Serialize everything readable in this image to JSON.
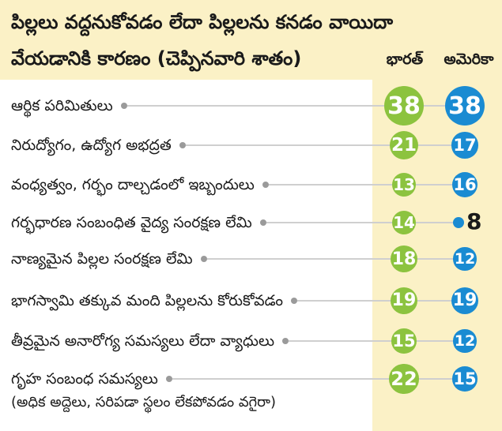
{
  "chart_data": {
    "type": "table",
    "title_line1": "పిల్లలు వద్దనుకోవడం లేదా పిల్లలను కనడం వాయిదా",
    "title_line2": "వేయడానికి కారణం (చెప్పినవారి శాతం)",
    "series": [
      {
        "name": "భారత్",
        "color": "#8cc33f"
      },
      {
        "name": "అమెరికా",
        "color": "#1a8bd2"
      }
    ],
    "rows": [
      {
        "label": "ఆర్థిక పరిమితులు",
        "values": [
          38,
          38
        ]
      },
      {
        "label": "నిరుద్యోగం, ఉద్యోగ అభద్రత",
        "values": [
          21,
          17
        ]
      },
      {
        "label": "వంధ్యత్వం, గర్భం దాల్చడంలో ఇబ్బందులు",
        "values": [
          13,
          16
        ]
      },
      {
        "label": "గర్భధారణ సంబంధిత వైద్య సంరక్షణ లేమి",
        "values": [
          14,
          8
        ]
      },
      {
        "label": "నాణ్యమైన పిల్లల సంరక్షణ లేమి",
        "values": [
          18,
          12
        ]
      },
      {
        "label": "భాగస్వామి తక్కువ మంది పిల్లలను కోరుకోవడం",
        "values": [
          19,
          19
        ]
      },
      {
        "label": "తీవ్రమైన అనారోగ్య సమస్యలు లేదా వ్యాధులు",
        "values": [
          15,
          12
        ]
      },
      {
        "label": "గృహ సంబంధ సమస్యలు",
        "sublabel": "(అధిక అద్దెలు, సరిపడా స్థలం లేకపోవడం వగైరా)",
        "values": [
          22,
          15
        ]
      }
    ]
  }
}
